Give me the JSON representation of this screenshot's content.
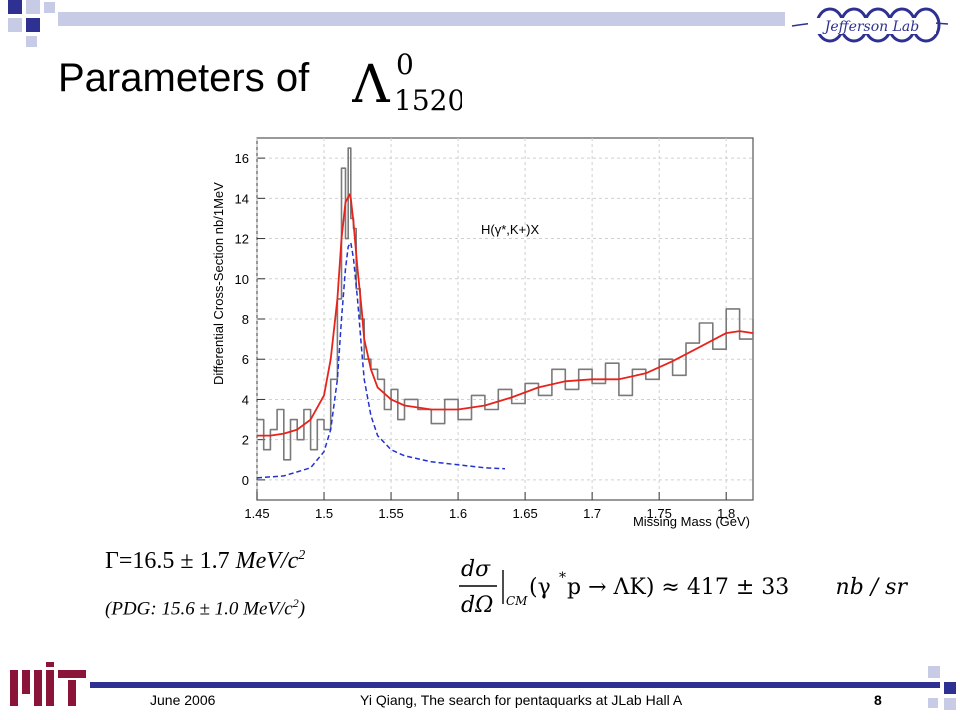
{
  "slide": {
    "title": "Parameters of",
    "title_symbol": {
      "base": "Λ",
      "superscript": "0",
      "subscript": "1520"
    },
    "logo_text": "Jefferson Lab"
  },
  "result": {
    "gamma_prefix": "Γ=16.5 ± 1.7 ",
    "gamma_unit": "MeV/c",
    "gamma_exp": "2",
    "pdg_prefix": "(PDG: 15.6 ± 1.0 MeV/c",
    "pdg_exp": "2",
    "pdg_suffix": ")"
  },
  "formula": {
    "numerator": "dσ",
    "denominator": "dΩ",
    "subscript": "CM",
    "reaction_open": "(γ",
    "reaction_star": "*",
    "reaction_rest": " p → ΛK) ≈ 417 ± 33",
    "units": "nb / sr"
  },
  "footer": {
    "date": "June 2006",
    "center": "Yi Qiang, The search for pentaquarks at JLab Hall A",
    "page": "8"
  },
  "colors": {
    "fit": "#e8231b",
    "peak": "#2233cc",
    "data": "#7a7a7a",
    "accent": "#2e3192",
    "accent_light": "#c8cbe6"
  },
  "chart_data": {
    "type": "line",
    "ylabel": "Differential Cross-Section nb/1MeV",
    "xlabel": "Missing Mass (GeV)",
    "annotation": "H(γ*,K+)X",
    "xlim": [
      1.45,
      1.82
    ],
    "ylim": [
      -1,
      17
    ],
    "xticks": [
      "1.45",
      "1.5",
      "1.55",
      "1.6",
      "1.65",
      "1.7",
      "1.75",
      "1.8"
    ],
    "yticks": [
      "0",
      "2",
      "4",
      "6",
      "8",
      "10",
      "12",
      "14",
      "16"
    ],
    "grid": true,
    "series": [
      {
        "values_x": [
          1.45,
          1.455,
          1.46,
          1.465,
          1.47,
          1.475,
          1.48,
          1.485,
          1.49,
          1.495,
          1.5,
          1.505,
          1.51,
          1.513,
          1.516,
          1.518,
          1.52,
          1.522,
          1.524,
          1.527,
          1.53,
          1.535,
          1.54,
          1.545,
          1.55,
          1.555,
          1.56,
          1.57,
          1.58,
          1.59,
          1.6,
          1.61,
          1.62,
          1.63,
          1.64,
          1.65,
          1.66,
          1.67,
          1.68,
          1.69,
          1.7,
          1.71,
          1.72,
          1.73,
          1.74,
          1.75,
          1.76,
          1.77,
          1.78,
          1.79,
          1.8,
          1.81,
          1.82
        ],
        "values_y": [
          3.0,
          1.5,
          2.5,
          3.5,
          1.0,
          3.0,
          2.0,
          3.5,
          1.5,
          3.0,
          2.5,
          5.0,
          9.0,
          15.5,
          12.0,
          16.5,
          13.0,
          12.5,
          9.5,
          8.0,
          6.0,
          5.5,
          5.0,
          3.5,
          4.5,
          3.0,
          4.0,
          3.5,
          2.8,
          4.0,
          3.0,
          4.2,
          3.5,
          4.5,
          3.8,
          4.8,
          4.2,
          5.5,
          4.5,
          5.5,
          4.8,
          5.8,
          4.2,
          5.5,
          5.0,
          6.0,
          5.2,
          6.8,
          7.8,
          6.5,
          8.5,
          7.0,
          8.0
        ]
      },
      {
        "values_x": [
          1.45,
          1.46,
          1.47,
          1.48,
          1.49,
          1.5,
          1.505,
          1.51,
          1.513,
          1.516,
          1.519,
          1.52,
          1.522,
          1.525,
          1.528,
          1.53,
          1.535,
          1.54,
          1.55,
          1.56,
          1.58,
          1.6,
          1.62,
          1.64,
          1.66,
          1.68,
          1.7,
          1.72,
          1.74,
          1.76,
          1.78,
          1.8,
          1.81,
          1.82
        ],
        "values_y": [
          2.2,
          2.2,
          2.3,
          2.5,
          3.0,
          4.2,
          6.0,
          9.0,
          12.0,
          13.8,
          14.2,
          14.0,
          12.8,
          10.5,
          8.5,
          7.0,
          5.5,
          4.6,
          4.0,
          3.7,
          3.5,
          3.5,
          3.7,
          4.1,
          4.6,
          4.9,
          5.0,
          5.0,
          5.3,
          5.9,
          6.6,
          7.3,
          7.4,
          7.3
        ]
      },
      {
        "values_x": [
          1.45,
          1.47,
          1.49,
          1.5,
          1.505,
          1.51,
          1.513,
          1.516,
          1.518,
          1.52,
          1.522,
          1.525,
          1.528,
          1.53,
          1.535,
          1.54,
          1.55,
          1.56,
          1.58,
          1.6,
          1.62,
          1.635
        ],
        "values_y": [
          0.1,
          0.2,
          0.6,
          1.4,
          2.5,
          5.0,
          8.0,
          10.5,
          11.6,
          11.8,
          11.0,
          9.0,
          6.5,
          5.0,
          3.2,
          2.2,
          1.5,
          1.2,
          0.9,
          0.75,
          0.6,
          0.55
        ]
      }
    ]
  }
}
